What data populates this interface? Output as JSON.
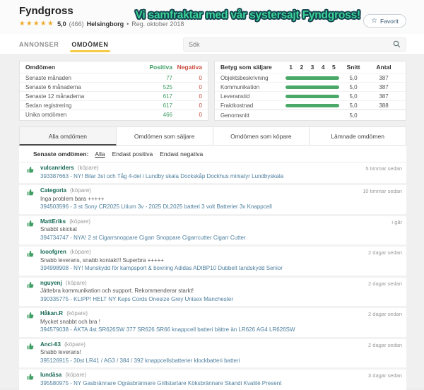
{
  "header": {
    "title": "Fyndgross",
    "stars": "★★★★★",
    "rating": "5,0",
    "rating_count": "(466)",
    "location": "Helsingborg",
    "dot": "•",
    "registered": "Reg. oktober 2018",
    "banner": "Vi samfraktar med vår systersajt Fyndgross!",
    "favorite_label": "Favorit",
    "favorite_icon": "☆"
  },
  "nav": {
    "tabs": [
      {
        "label": "ANNONSER",
        "active": false
      },
      {
        "label": "OMDÖMEN",
        "active": true
      }
    ],
    "search_placeholder": "Sök"
  },
  "summary": {
    "columns": {
      "name": "Omdömen",
      "positive": "Positiva",
      "negative": "Negativa"
    },
    "rows": [
      {
        "label": "Senaste månaden",
        "positive": "77",
        "negative": "0"
      },
      {
        "label": "Senaste 6 månaderna",
        "positive": "525",
        "negative": "0"
      },
      {
        "label": "Senaste 12 månaderna",
        "positive": "617",
        "negative": "0"
      },
      {
        "label": "Sedan registrering",
        "positive": "617",
        "negative": "0"
      },
      {
        "label": "Unika omdömen",
        "positive": "466",
        "negative": "0"
      }
    ]
  },
  "ratings": {
    "title": "Betyg som säljare",
    "scale": [
      "1",
      "2",
      "3",
      "4",
      "5"
    ],
    "snitt_label": "Snitt",
    "antal_label": "Antal",
    "rows": [
      {
        "label": "Objektsbeskrivning",
        "avg": "5,0",
        "count": "387",
        "percent": 100
      },
      {
        "label": "Kommunikation",
        "avg": "5,0",
        "count": "387",
        "percent": 100
      },
      {
        "label": "Leveranstid",
        "avg": "5,0",
        "count": "387",
        "percent": 100
      },
      {
        "label": "Fraktkostnad",
        "avg": "5,0",
        "count": "388",
        "percent": 100
      }
    ],
    "total_label": "Genomsnitt",
    "total_avg": "5,0"
  },
  "feedback_tabs": [
    {
      "label": "Alla omdömen",
      "active": true
    },
    {
      "label": "Omdömen som säljare",
      "active": false
    },
    {
      "label": "Omdömen som köpare",
      "active": false
    },
    {
      "label": "Lämnade omdömen",
      "active": false
    }
  ],
  "filters": {
    "label": "Senaste omdömen:",
    "options": [
      {
        "label": "Alla",
        "active": true
      },
      {
        "label": "Endast positiva",
        "active": false
      },
      {
        "label": "Endast negativa",
        "active": false
      }
    ]
  },
  "feedback": [
    {
      "user": "vulcanriders",
      "role": "(köpare)",
      "comment": "",
      "item": "393387663 - NY! Bilar 3st och Tåg 4-del i Lundby skala Dockskåp Dockhus miniatyr Lundbyskala",
      "time": "5 timmar sedan"
    },
    {
      "user": "Categoria",
      "role": "(köpare)",
      "comment": "Inga problem bara +++++",
      "item": "394503596 - 3 st Sony CR2025 Litium 3v - 2025 DL2025 batteri 3 volt Batterier 3v Knappcell",
      "time": "10 timmar sedan"
    },
    {
      "user": "MattEriks",
      "role": "(köpare)",
      "comment": "Snabbt skickat",
      "item": "394734747 - NYA! 2 st Cigarrsnoppare Cigarr Snoppare Cigarrcutter Cigarr Cutter",
      "time": "i går"
    },
    {
      "user": "looofgren",
      "role": "(köpare)",
      "comment": "Snabb leverans, snabb kontakt!! Superbra +++++",
      "item": "394998908 - NY! Munskydd för kampsport & boxning Adidas ADIBP10 Dubbelt tandskydd Senior",
      "time": "2 dagar sedan"
    },
    {
      "user": "nguyenj",
      "role": "(köpare)",
      "comment": "Jättebra kommunikation och support. Rekommenderar starkt!",
      "item": "390335775 - KLIPP! HELT NY Keps Cords Onesize Grey Unisex Manchester",
      "time": "2 dagar sedan"
    },
    {
      "user": "Håkan.R",
      "role": "(köpare)",
      "comment": "Mycket snabbt och bra !",
      "item": "394579038 - ÄKTA 4st SR626SW 377 SR626 SR66 knappcell batteri bättre än LR626 AG4 LR626SW",
      "time": "2 dagar sedan"
    },
    {
      "user": "Anci-63",
      "role": "(köpare)",
      "comment": "Snabb leverans!",
      "item": "395126915 - 30st LR41 / AG3 / 384 / 392 knappcellsbatterier klockbatteri batteri",
      "time": "2 dagar sedan"
    },
    {
      "user": "lundäsa",
      "role": "(köpare)",
      "comment": "",
      "item": "395580975 - NY Gasbrännare Ogräsbrännare Grillstartare Köksbrännare Skandi Kvalité Present",
      "time": "3 dagar sedan"
    }
  ],
  "colors": {
    "accent_green": "#3f9e63",
    "accent_red": "#cc4b3d",
    "star_gold": "#f0a71f",
    "tab_underline_yellow": "#f7cb45",
    "banner_green": "#3bd598",
    "link_blue": "#4e7f9e",
    "username_teal": "#156954",
    "bar_green": "#4aa968"
  }
}
